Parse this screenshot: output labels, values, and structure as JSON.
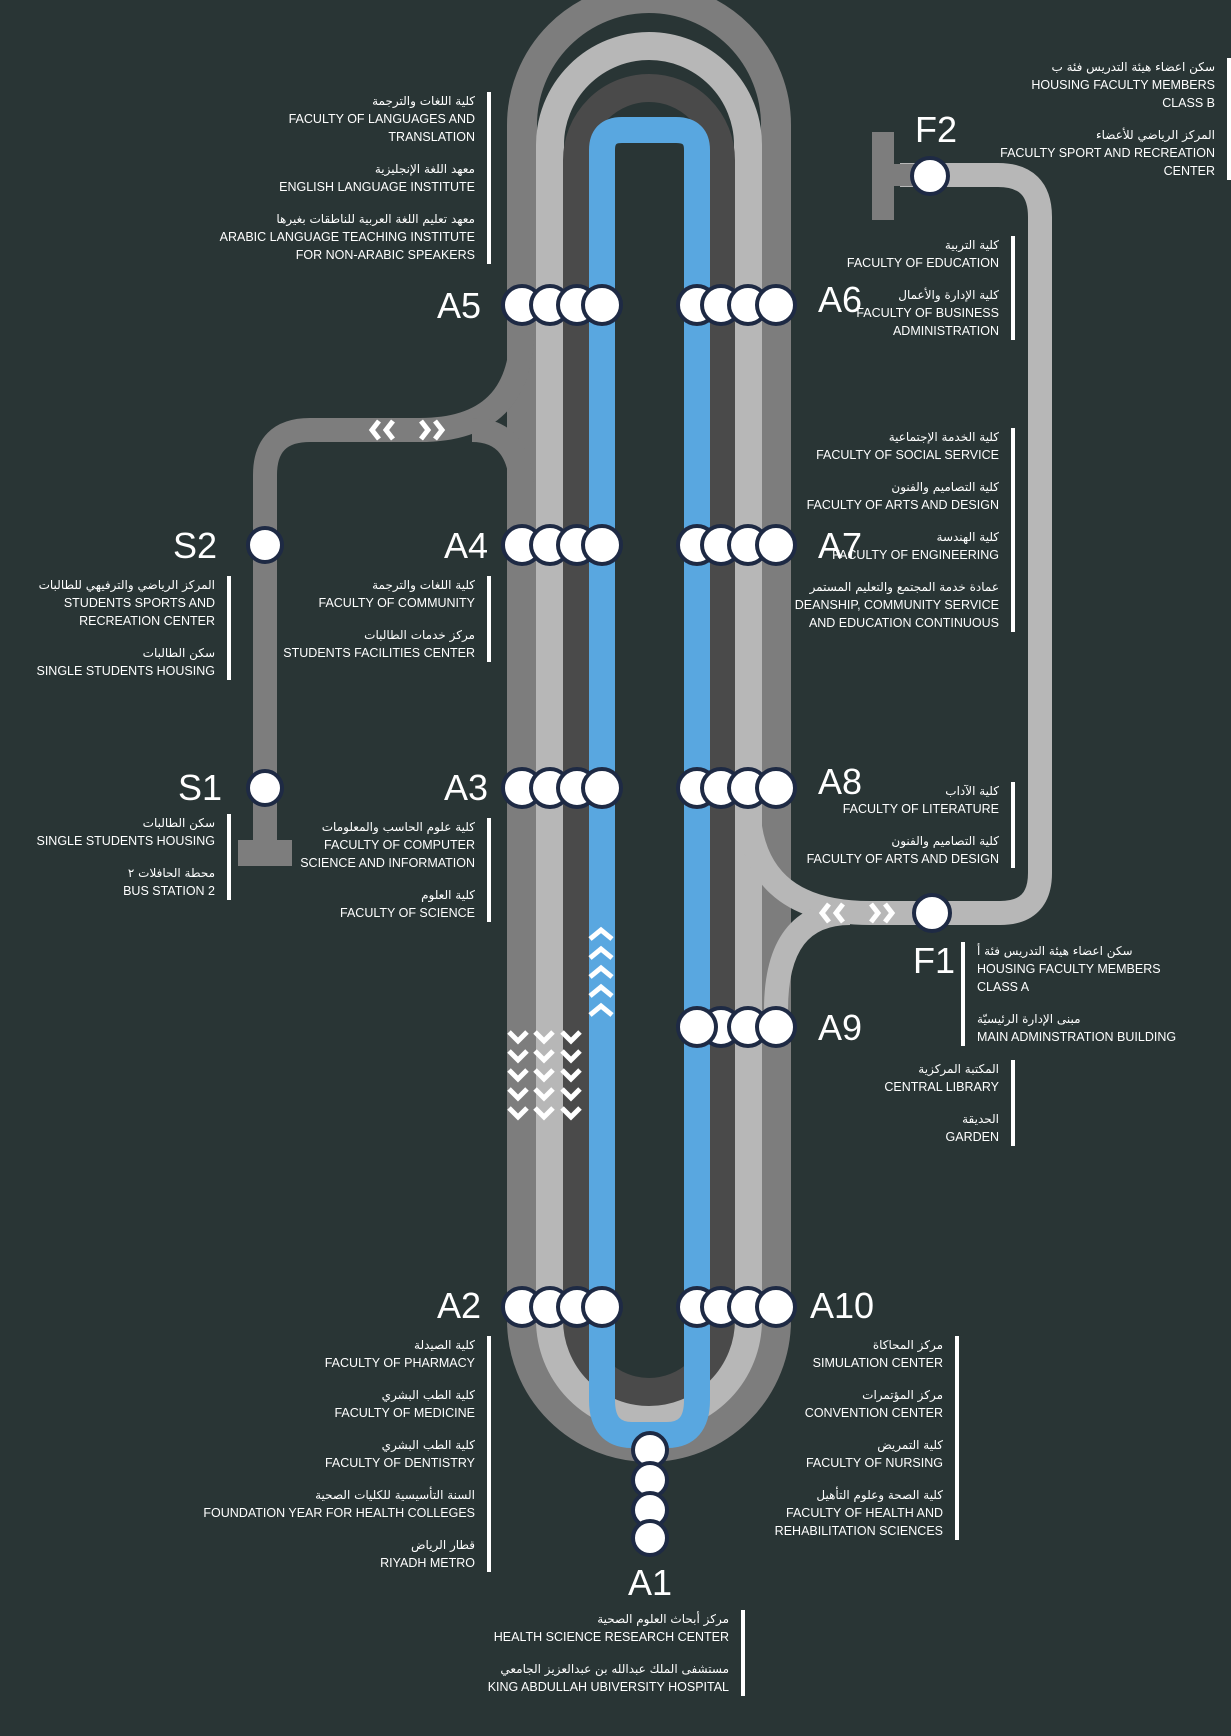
{
  "colors": {
    "background": "#293535",
    "outer_track": "#7d7d7d",
    "middle_track": "#b7b7b7",
    "inner_track": "#4a4a4a",
    "blue_track": "#59a7e0",
    "station_fill": "#ffffff",
    "station_stroke": "#1e2a44"
  },
  "stations": {
    "A1": "A1",
    "A2": "A2",
    "A3": "A3",
    "A4": "A4",
    "A5": "A5",
    "A6": "A6",
    "A7": "A7",
    "A8": "A8",
    "A9": "A9",
    "A10": "A10",
    "S1": "S1",
    "S2": "S2",
    "F1": "F1",
    "F2": "F2"
  },
  "info": {
    "A5": [
      {
        "ar": "كلية اللغات والترجمة",
        "en": "FACULTY OF LANGUAGES AND\nTRANSLATION"
      },
      {
        "ar": "معهد اللغة الإنجليزية",
        "en": "ENGLISH LANGUAGE INSTITUTE"
      },
      {
        "ar": "معهد تعليم اللغة العربية للناطقات بغيرها",
        "en": "ARABIC LANGUAGE TEACHING INSTITUTE\nFOR NON-ARABIC SPEAKERS"
      }
    ],
    "F2": [
      {
        "ar": "سكن اعضاء هيئة التدريس فئة ب",
        "en": "HOUSING FACULTY MEMBERS\nCLASS B"
      },
      {
        "ar": "المركز الرياضي للأعضاء",
        "en": "FACULTY SPORT AND RECREATION\nCENTER"
      }
    ],
    "A6": [
      {
        "ar": "كلية التربية",
        "en": "FACULTY OF EDUCATION"
      },
      {
        "ar": "كلية الإدارة والأعمال",
        "en": "FACULTY OF BUSINESS\nADMINISTRATION"
      }
    ],
    "A7": [
      {
        "ar": "كلية الخدمة الإجتماعية",
        "en": "FACULTY OF SOCIAL SERVICE"
      },
      {
        "ar": "كلية التصاميم والفنون",
        "en": "FACULTY OF ARTS AND DESIGN"
      },
      {
        "ar": "كلية الهندسة",
        "en": "FACULTY OF ENGINEERING"
      },
      {
        "ar": "عمادة خدمة المجتمع والتعليم المستمر",
        "en": "DEANSHIP, COMMUNITY SERVICE\nAND EDUCATION CONTINUOUS"
      }
    ],
    "S2": [
      {
        "ar": "المركز الرياضي والترفيهي للطالبات",
        "en": "STUDENTS SPORTS AND\nRECREATION CENTER"
      },
      {
        "ar": "سكن الطالبات",
        "en": "SINGLE STUDENTS HOUSING"
      }
    ],
    "A4": [
      {
        "ar": "كلية اللغات والترجمة",
        "en": "FACULTY OF COMMUNITY"
      },
      {
        "ar": "مركز خدمات الطالبات",
        "en": "STUDENTS FACILITIES CENTER"
      }
    ],
    "S1": [
      {
        "ar": "سكن الطالبات",
        "en": "SINGLE STUDENTS HOUSING"
      },
      {
        "ar": "محطة الحافلات ٢",
        "en": "BUS STATION 2"
      }
    ],
    "A3": [
      {
        "ar": "كلية علوم الحاسب والمعلومات",
        "en": "FACULTY OF COMPUTER\nSCIENCE AND INFORMATION"
      },
      {
        "ar": "كلية العلوم",
        "en": "FACULTY OF SCIENCE"
      }
    ],
    "A8": [
      {
        "ar": "كلية الآداب",
        "en": "FACULTY OF LITERATURE"
      },
      {
        "ar": "كلية التصاميم والفنون",
        "en": "FACULTY OF ARTS AND DESIGN"
      }
    ],
    "F1": [
      {
        "ar": "سكن اعضاء هيئة التدريس فئة أ",
        "en": "HOUSING FACULTY MEMBERS\nCLASS A"
      },
      {
        "ar": "مبنى الإدارة الرئيسيّة",
        "en": "MAIN ADMINSTRATION BUILDING"
      }
    ],
    "A9": [
      {
        "ar": "المكتبة المركزية",
        "en": "CENTRAL LIBRARY"
      },
      {
        "ar": "الحديقة",
        "en": "GARDEN"
      }
    ],
    "A2": [
      {
        "ar": "كلية الصيدلة",
        "en": "FACULTY OF PHARMACY"
      },
      {
        "ar": "كلية الطب البشري",
        "en": "FACULTY OF MEDICINE"
      },
      {
        "ar": "كلية الطب البشري",
        "en": "FACULTY OF DENTISTRY"
      },
      {
        "ar": "السنة التأسيسية للكليات الصحية",
        "en": "FOUNDATION YEAR FOR HEALTH COLLEGES"
      },
      {
        "ar": "قطار الرياض",
        "en": "RIYADH METRO"
      }
    ],
    "A10": [
      {
        "ar": "مركز المحاكاة",
        "en": "SIMULATION CENTER"
      },
      {
        "ar": "مركز المؤتمرات",
        "en": "CONVENTION CENTER"
      },
      {
        "ar": "كلية التمريض",
        "en": "FACULTY OF NURSING"
      },
      {
        "ar": "كلية الصحة وعلوم التأهيل",
        "en": "FACULTY OF HEALTH AND\nREHABILITATION SCIENCES"
      }
    ],
    "A1": [
      {
        "ar": "مركز أبحاث العلوم الصحية",
        "en": "HEALTH SCIENCE RESEARCH CENTER"
      },
      {
        "ar": "مستشفى الملك عبدالله بن عبدالعزيز الجامعي",
        "en": "KING ABDULLAH UBIVERSITY HOSPITAL"
      }
    ]
  }
}
